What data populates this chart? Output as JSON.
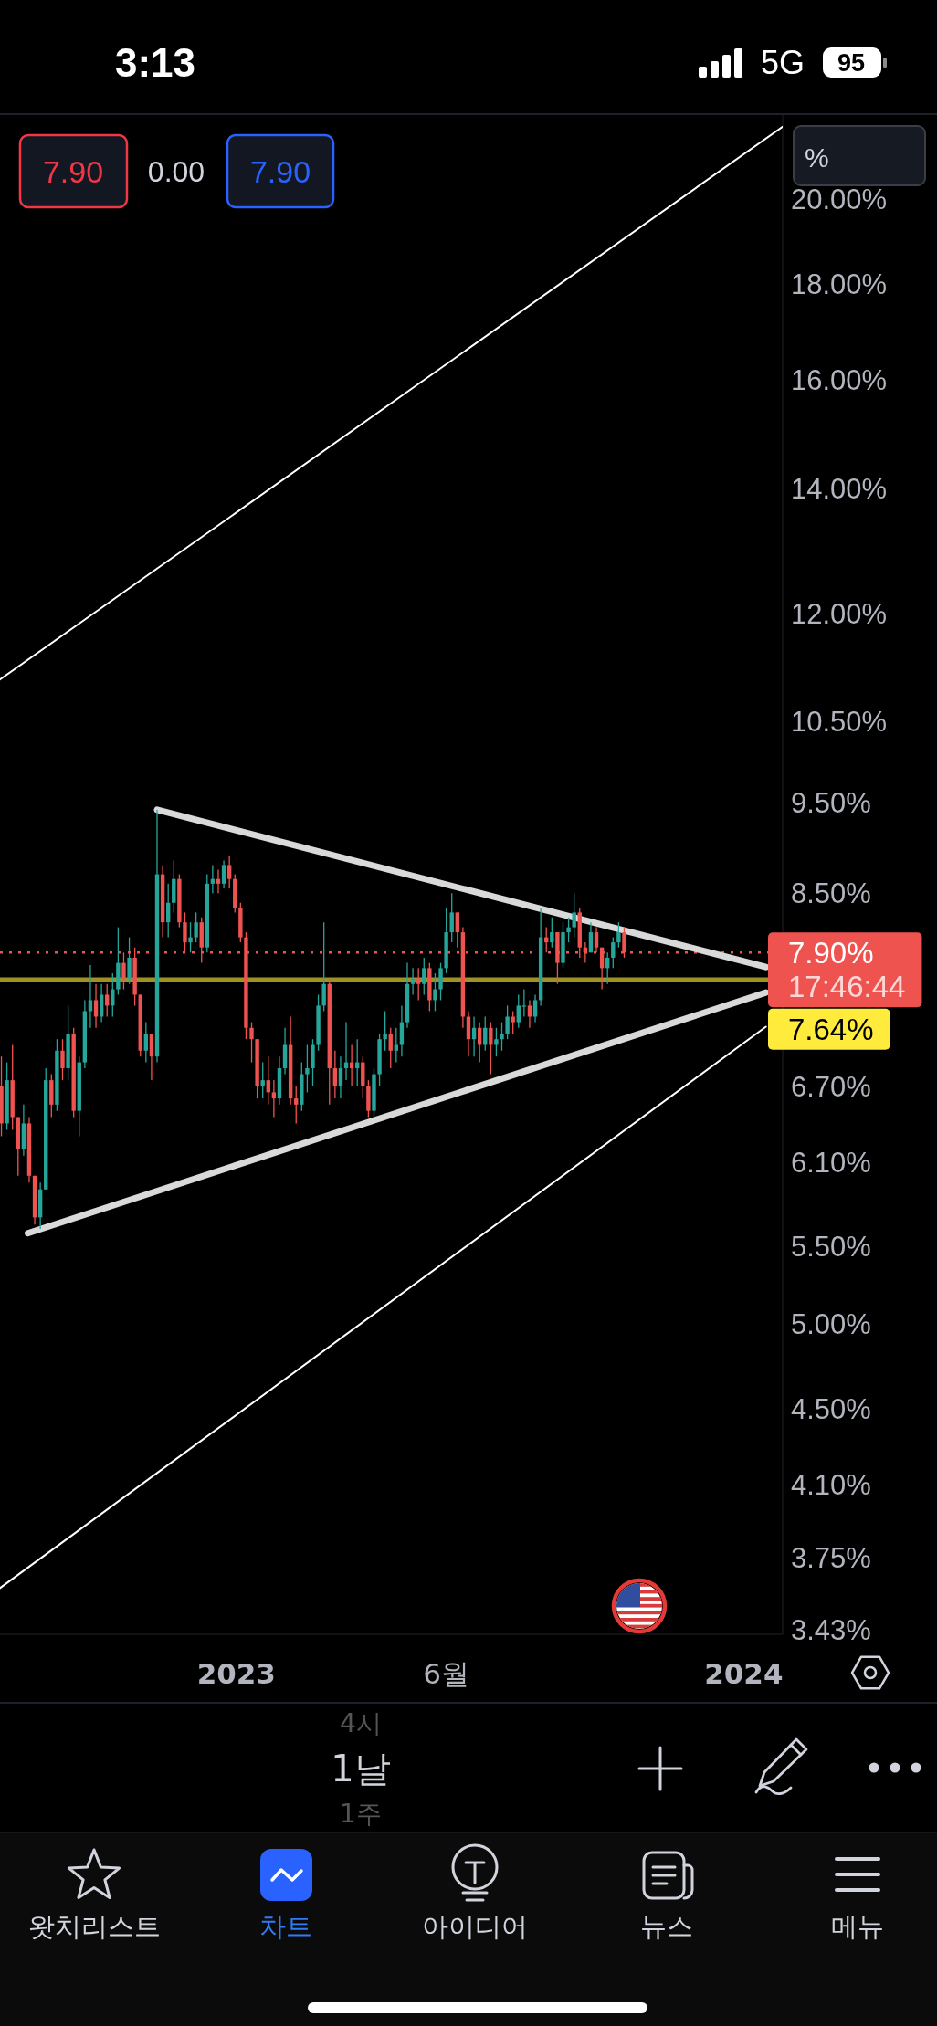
{
  "chart_data": {
    "type": "candlestick",
    "log": true,
    "xlim": [
      "2022-07-15",
      "2024-01-29"
    ],
    "xticks": [
      {
        "value": "2023-01-01",
        "label": "2023"
      },
      {
        "value": "2023-06-01",
        "label": "6월"
      },
      {
        "value": "2024-01-01",
        "label": "2024"
      }
    ],
    "ylim": [
      3.41,
      22.2
    ],
    "yticks": [
      {
        "value": 20,
        "label": "20.00%"
      },
      {
        "value": 18,
        "label": "18.00%"
      },
      {
        "value": 16,
        "label": "16.00%"
      },
      {
        "value": 14,
        "label": "14.00%"
      },
      {
        "value": 12,
        "label": "12.00%"
      },
      {
        "value": 10.5,
        "label": "10.50%"
      },
      {
        "value": 9.5,
        "label": "9.50%"
      },
      {
        "value": 8.5,
        "label": "8.50%"
      },
      {
        "value": 6.7,
        "label": "6.70%"
      },
      {
        "value": 6.1,
        "label": "6.10%"
      },
      {
        "value": 5.5,
        "label": "5.50%"
      },
      {
        "value": 5,
        "label": "5.00%"
      },
      {
        "value": 4.5,
        "label": "4.50%"
      },
      {
        "value": 4.1,
        "label": "4.10%"
      },
      {
        "value": 3.75,
        "label": "3.75%"
      },
      {
        "value": 3.43,
        "label": "3.43%"
      }
    ],
    "series": [
      {
        "x": [
          "2022-07-16",
          "2022-07-20",
          "2022-07-24",
          "2022-07-28",
          "2022-08-01",
          "2022-08-05",
          "2022-08-09",
          "2022-08-13",
          "2022-08-17",
          "2022-08-21",
          "2022-08-25",
          "2022-08-29",
          "2022-09-02",
          "2022-09-06",
          "2022-09-10",
          "2022-09-14",
          "2022-09-18",
          "2022-09-22",
          "2022-09-26",
          "2022-09-30",
          "2022-10-04",
          "2022-10-08",
          "2022-10-12",
          "2022-10-16",
          "2022-10-20",
          "2022-10-24",
          "2022-10-28",
          "2022-11-01",
          "2022-11-05",
          "2022-11-09",
          "2022-11-13",
          "2022-11-17",
          "2022-11-21",
          "2022-11-25",
          "2022-11-29",
          "2022-12-03",
          "2022-12-07",
          "2022-12-11",
          "2022-12-15",
          "2022-12-19",
          "2022-12-23",
          "2022-12-27",
          "2022-12-31",
          "2023-01-04",
          "2023-01-08",
          "2023-01-12",
          "2023-01-16",
          "2023-01-20",
          "2023-01-24",
          "2023-01-28",
          "2023-02-01",
          "2023-02-05",
          "2023-02-09",
          "2023-02-13",
          "2023-02-17",
          "2023-02-21",
          "2023-02-25",
          "2023-03-01",
          "2023-03-05",
          "2023-03-09",
          "2023-03-13",
          "2023-03-17",
          "2023-03-21",
          "2023-03-25",
          "2023-03-29",
          "2023-04-02",
          "2023-04-06",
          "2023-04-10",
          "2023-04-14",
          "2023-04-18",
          "2023-04-22",
          "2023-04-26",
          "2023-04-30",
          "2023-05-04",
          "2023-05-08",
          "2023-05-12",
          "2023-05-16",
          "2023-05-20",
          "2023-05-24",
          "2023-05-28",
          "2023-06-01",
          "2023-06-05",
          "2023-06-09",
          "2023-06-13",
          "2023-06-17",
          "2023-06-21",
          "2023-06-25",
          "2023-06-29",
          "2023-07-03",
          "2023-07-07",
          "2023-07-11",
          "2023-07-15",
          "2023-07-19",
          "2023-07-23",
          "2023-07-27",
          "2023-07-31",
          "2023-08-04",
          "2023-08-08",
          "2023-08-12",
          "2023-08-16",
          "2023-08-20",
          "2023-08-24",
          "2023-08-28",
          "2023-09-01",
          "2023-09-05",
          "2023-09-09",
          "2023-09-13",
          "2023-09-17",
          "2023-09-21",
          "2023-09-25",
          "2023-09-29",
          "2023-10-03",
          "2023-10-07"
        ],
        "ohlc": [
          [
            6.7,
            6.95,
            6.3,
            6.4
          ],
          [
            6.4,
            6.9,
            6.35,
            6.75
          ],
          [
            6.75,
            7.05,
            6.35,
            6.45
          ],
          [
            6.45,
            6.45,
            6.0,
            6.2
          ],
          [
            6.2,
            6.55,
            6.15,
            6.4
          ],
          [
            6.4,
            6.45,
            5.95,
            6.0
          ],
          [
            6.0,
            6.0,
            5.65,
            5.7
          ],
          [
            5.7,
            5.95,
            5.62,
            5.9
          ],
          [
            5.9,
            6.85,
            5.9,
            6.75
          ],
          [
            6.75,
            6.8,
            6.45,
            6.55
          ],
          [
            6.55,
            7.1,
            6.5,
            7.0
          ],
          [
            7.0,
            7.1,
            6.75,
            6.85
          ],
          [
            6.85,
            7.4,
            6.75,
            7.15
          ],
          [
            7.15,
            7.2,
            6.45,
            6.5
          ],
          [
            6.5,
            6.95,
            6.3,
            6.9
          ],
          [
            6.9,
            7.45,
            6.85,
            7.35
          ],
          [
            7.35,
            7.78,
            7.2,
            7.45
          ],
          [
            7.45,
            7.6,
            7.2,
            7.3
          ],
          [
            7.3,
            7.6,
            7.25,
            7.5
          ],
          [
            7.5,
            7.6,
            7.3,
            7.4
          ],
          [
            7.4,
            7.7,
            7.3,
            7.55
          ],
          [
            7.55,
            8.15,
            7.5,
            7.8
          ],
          [
            7.8,
            7.9,
            7.55,
            7.65
          ],
          [
            7.65,
            8.05,
            7.6,
            7.85
          ],
          [
            7.85,
            7.95,
            7.4,
            7.5
          ],
          [
            7.5,
            7.5,
            6.95,
            7.0
          ],
          [
            7.0,
            7.25,
            6.9,
            7.15
          ],
          [
            7.15,
            7.15,
            6.75,
            6.95
          ],
          [
            6.95,
            9.42,
            6.9,
            8.7
          ],
          [
            8.7,
            8.8,
            8.05,
            8.2
          ],
          [
            8.2,
            8.6,
            8.05,
            8.4
          ],
          [
            8.4,
            8.85,
            8.3,
            8.65
          ],
          [
            8.65,
            8.7,
            8.15,
            8.2
          ],
          [
            8.2,
            8.3,
            7.9,
            8.0
          ],
          [
            8.0,
            8.2,
            7.9,
            8.05
          ],
          [
            8.05,
            8.3,
            8.0,
            8.2
          ],
          [
            8.2,
            8.25,
            7.8,
            7.95
          ],
          [
            7.95,
            8.7,
            7.9,
            8.6
          ],
          [
            8.6,
            8.8,
            8.5,
            8.65
          ],
          [
            8.65,
            8.75,
            8.5,
            8.6
          ],
          [
            8.6,
            8.85,
            8.55,
            8.8
          ],
          [
            8.8,
            8.9,
            8.55,
            8.65
          ],
          [
            8.65,
            8.7,
            8.3,
            8.35
          ],
          [
            8.35,
            8.4,
            8.0,
            8.05
          ],
          [
            8.05,
            8.1,
            7.1,
            7.2
          ],
          [
            7.2,
            7.25,
            6.9,
            7.1
          ],
          [
            7.1,
            7.1,
            6.6,
            6.7
          ],
          [
            6.7,
            6.9,
            6.6,
            6.75
          ],
          [
            6.75,
            6.95,
            6.55,
            6.65
          ],
          [
            6.65,
            6.75,
            6.45,
            6.6
          ],
          [
            6.6,
            6.95,
            6.55,
            6.85
          ],
          [
            6.85,
            7.2,
            6.8,
            7.05
          ],
          [
            7.05,
            7.3,
            6.55,
            6.6
          ],
          [
            6.6,
            6.7,
            6.4,
            6.55
          ],
          [
            6.55,
            6.9,
            6.5,
            6.8
          ],
          [
            6.8,
            7.05,
            6.65,
            6.85
          ],
          [
            6.85,
            7.1,
            6.7,
            7.05
          ],
          [
            7.05,
            7.5,
            7.0,
            7.4
          ],
          [
            7.4,
            8.2,
            7.35,
            7.6
          ],
          [
            7.6,
            7.65,
            6.55,
            6.85
          ],
          [
            6.85,
            7.0,
            6.6,
            6.7
          ],
          [
            6.7,
            6.95,
            6.6,
            6.85
          ],
          [
            6.85,
            7.25,
            6.75,
            6.9
          ],
          [
            6.9,
            7.05,
            6.7,
            6.85
          ],
          [
            6.85,
            7.1,
            6.7,
            6.9
          ],
          [
            6.9,
            6.95,
            6.6,
            6.7
          ],
          [
            6.7,
            6.75,
            6.45,
            6.5
          ],
          [
            6.5,
            6.85,
            6.45,
            6.8
          ],
          [
            6.8,
            7.15,
            6.7,
            7.1
          ],
          [
            7.1,
            7.35,
            7.0,
            7.15
          ],
          [
            7.15,
            7.2,
            6.85,
            7.0
          ],
          [
            7.0,
            7.2,
            6.9,
            7.05
          ],
          [
            7.05,
            7.4,
            6.95,
            7.25
          ],
          [
            7.25,
            7.8,
            7.2,
            7.6
          ],
          [
            7.6,
            7.75,
            7.5,
            7.65
          ],
          [
            7.65,
            7.75,
            7.45,
            7.6
          ],
          [
            7.6,
            7.85,
            7.5,
            7.75
          ],
          [
            7.75,
            7.8,
            7.35,
            7.45
          ],
          [
            7.45,
            7.7,
            7.35,
            7.55
          ],
          [
            7.55,
            7.8,
            7.45,
            7.75
          ],
          [
            7.75,
            8.35,
            7.7,
            8.1
          ],
          [
            8.1,
            8.5,
            8.0,
            8.3
          ],
          [
            8.3,
            8.3,
            7.95,
            8.1
          ],
          [
            8.1,
            8.15,
            7.2,
            7.3
          ],
          [
            7.3,
            7.35,
            6.95,
            7.1
          ],
          [
            7.1,
            7.3,
            6.95,
            7.2
          ],
          [
            7.2,
            7.25,
            6.9,
            7.05
          ],
          [
            7.05,
            7.3,
            7.0,
            7.2
          ],
          [
            7.2,
            7.25,
            6.8,
            7.05
          ],
          [
            7.05,
            7.2,
            6.95,
            7.1
          ],
          [
            7.1,
            7.25,
            7.0,
            7.15
          ],
          [
            7.15,
            7.4,
            7.1,
            7.3
          ],
          [
            7.3,
            7.35,
            7.15,
            7.25
          ],
          [
            7.25,
            7.5,
            7.2,
            7.4
          ],
          [
            7.4,
            7.55,
            7.3,
            7.4
          ],
          [
            7.4,
            7.45,
            7.2,
            7.3
          ],
          [
            7.3,
            7.5,
            7.25,
            7.45
          ],
          [
            7.45,
            8.35,
            7.4,
            8.05
          ],
          [
            8.05,
            8.15,
            7.9,
            8.0
          ],
          [
            8.0,
            8.25,
            7.95,
            8.1
          ],
          [
            8.1,
            8.1,
            7.6,
            7.8
          ],
          [
            7.8,
            8.2,
            7.75,
            8.1
          ],
          [
            8.1,
            8.25,
            8.0,
            8.15
          ],
          [
            8.15,
            8.5,
            8.05,
            8.3
          ],
          [
            8.3,
            8.35,
            7.85,
            7.95
          ],
          [
            7.95,
            8.0,
            7.8,
            7.9
          ],
          [
            7.9,
            8.2,
            7.9,
            8.1
          ],
          [
            8.1,
            8.15,
            7.9,
            7.95
          ],
          [
            7.95,
            7.95,
            7.55,
            7.75
          ],
          [
            7.75,
            7.9,
            7.6,
            7.85
          ],
          [
            7.85,
            8.05,
            7.75,
            8.0
          ],
          [
            8.0,
            8.2,
            7.95,
            8.1
          ],
          [
            8.1,
            8.15,
            7.85,
            7.9
          ]
        ],
        "colors": [
          "#ef5350",
          "#26a69a",
          "#ef5350",
          "#ef5350",
          "#26a69a",
          "#ef5350",
          "#ef5350",
          "#26a69a",
          "#26a69a",
          "#ef5350",
          "#26a69a",
          "#ef5350",
          "#26a69a",
          "#ef5350",
          "#26a69a",
          "#26a69a",
          "#26a69a",
          "#ef5350",
          "#26a69a",
          "#ef5350",
          "#26a69a",
          "#26a69a",
          "#ef5350",
          "#26a69a",
          "#ef5350",
          "#ef5350",
          "#26a69a",
          "#ef5350",
          "#26a69a",
          "#ef5350",
          "#26a69a",
          "#26a69a",
          "#ef5350",
          "#ef5350",
          "#26a69a",
          "#26a69a",
          "#ef5350",
          "#26a69a",
          "#26a69a",
          "#ef5350",
          "#26a69a",
          "#ef5350",
          "#ef5350",
          "#ef5350",
          "#ef5350",
          "#ef5350",
          "#ef5350",
          "#26a69a",
          "#ef5350",
          "#ef5350",
          "#26a69a",
          "#26a69a",
          "#ef5350",
          "#ef5350",
          "#26a69a",
          "#26a69a",
          "#26a69a",
          "#26a69a",
          "#26a69a",
          "#ef5350",
          "#ef5350",
          "#26a69a",
          "#26a69a",
          "#ef5350",
          "#26a69a",
          "#ef5350",
          "#ef5350",
          "#26a69a",
          "#26a69a",
          "#26a69a",
          "#ef5350",
          "#26a69a",
          "#26a69a",
          "#26a69a",
          "#26a69a",
          "#ef5350",
          "#26a69a",
          "#ef5350",
          "#26a69a",
          "#26a69a",
          "#26a69a",
          "#26a69a",
          "#ef5350",
          "#ef5350",
          "#ef5350",
          "#26a69a",
          "#ef5350",
          "#26a69a",
          "#ef5350",
          "#26a69a",
          "#26a69a",
          "#26a69a",
          "#ef5350",
          "#26a69a",
          "#26a69a",
          "#ef5350",
          "#26a69a",
          "#26a69a",
          "#ef5350",
          "#26a69a",
          "#ef5350",
          "#26a69a",
          "#26a69a",
          "#26a69a",
          "#ef5350",
          "#ef5350",
          "#26a69a",
          "#ef5350",
          "#ef5350",
          "#26a69a",
          "#26a69a",
          "#26a69a",
          "#ef5350"
        ]
      },
      {
        "type": "line",
        "x": [
          "2022-11-05",
          "2024-01-17"
        ],
        "values": [
          9.42,
          7.76
        ],
        "color": "#d9d9d9"
      },
      {
        "type": "line",
        "x": [
          "2022-08-04",
          "2024-01-17"
        ],
        "values": [
          5.59,
          7.52
        ],
        "color": "#d9d9d9"
      },
      {
        "type": "line",
        "x": [
          "2022-07-15",
          "2024-01-29"
        ],
        "values": [
          11.06,
          21.86
        ],
        "color": "#ffffff"
      },
      {
        "type": "line",
        "x": [
          "2022-07-15",
          "2024-01-17"
        ],
        "values": [
          3.61,
          7.21
        ],
        "color": "#ffffff"
      }
    ],
    "ref_lines": [
      {
        "axis": "y",
        "value": 7.9,
        "label": "7.90%",
        "color": "#ef5350",
        "line_style": "dotted"
      },
      {
        "axis": "y",
        "value": 7.64,
        "label": "7.64%",
        "color": "#ffeb3b",
        "line_style": "solid"
      }
    ],
    "annotations": [
      "3:13",
      "5G",
      "95",
      "7.90",
      "0.00",
      "7.90",
      "%",
      "17:46:44",
      "1날",
      "4시",
      "1주",
      "왓치리스트",
      "차트",
      "아이디어",
      "뉴스",
      "메뉴"
    ]
  }
}
